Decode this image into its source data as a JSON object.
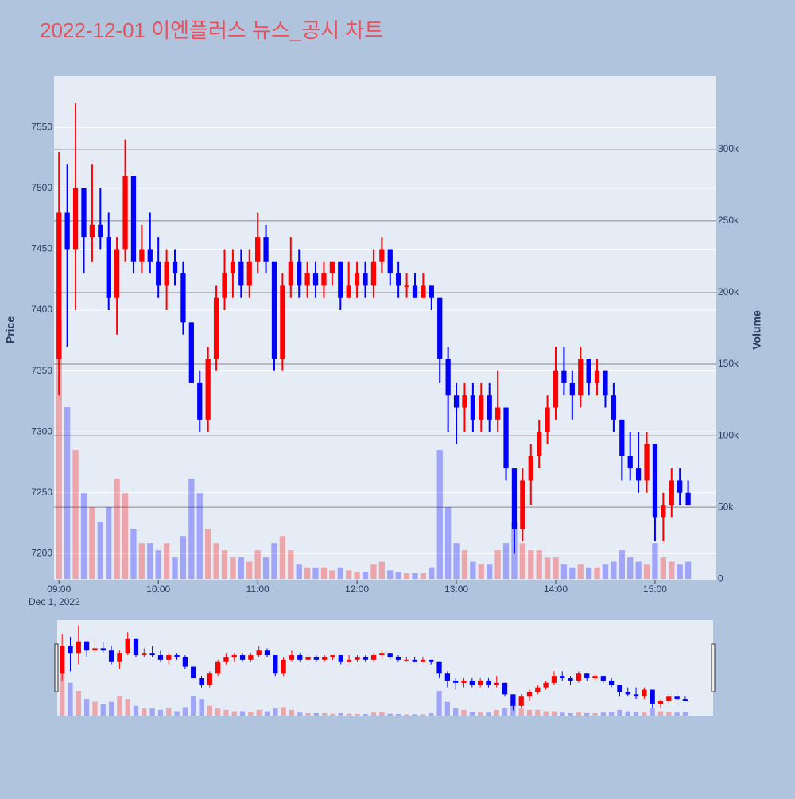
{
  "chart_data": {
    "type": "candlestick",
    "title": "2022-12-01 이엔플러스 뉴스_공시 차트",
    "y_label": "Price",
    "y2_label": "Volume",
    "x_sublabel": "Dec 1, 2022",
    "increasing_color": "#ff0000",
    "decreasing_color": "#0000ff",
    "grid": true,
    "range_slider": true,
    "xlim": [
      "2022-12-01 08:57",
      "2022-12-01 15:37"
    ],
    "xticks": [
      {
        "value": "2022-12-01 09:00",
        "label": "09:00"
      },
      {
        "value": "2022-12-01 10:00",
        "label": "10:00"
      },
      {
        "value": "2022-12-01 11:00",
        "label": "11:00"
      },
      {
        "value": "2022-12-01 12:00",
        "label": "12:00"
      },
      {
        "value": "2022-12-01 13:00",
        "label": "13:00"
      },
      {
        "value": "2022-12-01 14:00",
        "label": "14:00"
      },
      {
        "value": "2022-12-01 15:00",
        "label": "15:00"
      }
    ],
    "ylim": [
      7178,
      7592
    ],
    "yticks": [
      7200,
      7250,
      7300,
      7350,
      7400,
      7450,
      7500,
      7550
    ],
    "y2lim": [
      -1000,
      351000
    ],
    "y2ticks": [
      0,
      {
        "value": 50000,
        "label": "50k"
      },
      {
        "value": 100000,
        "label": "100k"
      },
      {
        "value": 150000,
        "label": "150k"
      },
      {
        "value": 200000,
        "label": "200k"
      },
      {
        "value": 250000,
        "label": "250k"
      },
      {
        "value": 300000,
        "label": "300k"
      }
    ],
    "x": [
      "2022-12-01 09:00",
      "2022-12-01 09:05",
      "2022-12-01 09:10",
      "2022-12-01 09:15",
      "2022-12-01 09:20",
      "2022-12-01 09:25",
      "2022-12-01 09:30",
      "2022-12-01 09:35",
      "2022-12-01 09:40",
      "2022-12-01 09:45",
      "2022-12-01 09:50",
      "2022-12-01 09:55",
      "2022-12-01 10:00",
      "2022-12-01 10:05",
      "2022-12-01 10:10",
      "2022-12-01 10:15",
      "2022-12-01 10:20",
      "2022-12-01 10:25",
      "2022-12-01 10:30",
      "2022-12-01 10:35",
      "2022-12-01 10:40",
      "2022-12-01 10:45",
      "2022-12-01 10:50",
      "2022-12-01 10:55",
      "2022-12-01 11:00",
      "2022-12-01 11:05",
      "2022-12-01 11:10",
      "2022-12-01 11:15",
      "2022-12-01 11:20",
      "2022-12-01 11:25",
      "2022-12-01 11:30",
      "2022-12-01 11:35",
      "2022-12-01 11:40",
      "2022-12-01 11:45",
      "2022-12-01 11:50",
      "2022-12-01 11:55",
      "2022-12-01 12:00",
      "2022-12-01 12:05",
      "2022-12-01 12:10",
      "2022-12-01 12:15",
      "2022-12-01 12:20",
      "2022-12-01 12:25",
      "2022-12-01 12:30",
      "2022-12-01 12:35",
      "2022-12-01 12:40",
      "2022-12-01 12:45",
      "2022-12-01 12:50",
      "2022-12-01 12:55",
      "2022-12-01 13:00",
      "2022-12-01 13:05",
      "2022-12-01 13:10",
      "2022-12-01 13:15",
      "2022-12-01 13:20",
      "2022-12-01 13:25",
      "2022-12-01 13:30",
      "2022-12-01 13:35",
      "2022-12-01 13:40",
      "2022-12-01 13:45",
      "2022-12-01 13:50",
      "2022-12-01 13:55",
      "2022-12-01 14:00",
      "2022-12-01 14:05",
      "2022-12-01 14:10",
      "2022-12-01 14:15",
      "2022-12-01 14:20",
      "2022-12-01 14:25",
      "2022-12-01 14:30",
      "2022-12-01 14:35",
      "2022-12-01 14:40",
      "2022-12-01 14:45",
      "2022-12-01 14:50",
      "2022-12-01 14:55",
      "2022-12-01 15:00",
      "2022-12-01 15:05",
      "2022-12-01 15:10",
      "2022-12-01 15:15",
      "2022-12-01 15:20"
    ],
    "open": [
      7360,
      7480,
      7450,
      7500,
      7460,
      7470,
      7460,
      7410,
      7450,
      7510,
      7440,
      7450,
      7440,
      7420,
      7440,
      7430,
      7390,
      7340,
      7310,
      7360,
      7410,
      7430,
      7440,
      7420,
      7440,
      7460,
      7440,
      7360,
      7420,
      7440,
      7420,
      7430,
      7420,
      7430,
      7440,
      7410,
      7420,
      7430,
      7420,
      7440,
      7450,
      7430,
      7420,
      7420,
      7410,
      7420,
      7410,
      7360,
      7330,
      7320,
      7330,
      7310,
      7330,
      7310,
      7320,
      7270,
      7220,
      7260,
      7280,
      7300,
      7320,
      7350,
      7340,
      7330,
      7360,
      7340,
      7350,
      7330,
      7310,
      7280,
      7270,
      7260,
      7290,
      7230,
      7240,
      7260,
      7250
    ],
    "high": [
      7530,
      7520,
      7570,
      7500,
      7520,
      7500,
      7480,
      7460,
      7540,
      7510,
      7470,
      7480,
      7460,
      7450,
      7450,
      7440,
      7390,
      7350,
      7370,
      7420,
      7450,
      7450,
      7450,
      7450,
      7480,
      7470,
      7440,
      7430,
      7460,
      7450,
      7440,
      7440,
      7440,
      7440,
      7440,
      7440,
      7440,
      7440,
      7450,
      7460,
      7450,
      7440,
      7430,
      7430,
      7430,
      7420,
      7410,
      7370,
      7340,
      7340,
      7340,
      7340,
      7340,
      7350,
      7320,
      7270,
      7270,
      7290,
      7310,
      7330,
      7370,
      7370,
      7350,
      7370,
      7360,
      7360,
      7350,
      7340,
      7310,
      7300,
      7300,
      7300,
      7290,
      7250,
      7270,
      7270,
      7260
    ],
    "low": [
      7330,
      7370,
      7400,
      7430,
      7440,
      7450,
      7400,
      7380,
      7440,
      7430,
      7430,
      7430,
      7410,
      7400,
      7420,
      7380,
      7340,
      7300,
      7300,
      7350,
      7400,
      7410,
      7410,
      7410,
      7430,
      7430,
      7350,
      7350,
      7410,
      7410,
      7410,
      7410,
      7410,
      7420,
      7400,
      7410,
      7410,
      7410,
      7410,
      7430,
      7420,
      7410,
      7410,
      7410,
      7410,
      7400,
      7340,
      7300,
      7290,
      7300,
      7300,
      7300,
      7300,
      7300,
      7260,
      7200,
      7210,
      7240,
      7270,
      7290,
      7310,
      7330,
      7310,
      7320,
      7330,
      7330,
      7320,
      7300,
      7260,
      7260,
      7250,
      7250,
      7210,
      7210,
      7230,
      7240,
      7240
    ],
    "close": [
      7480,
      7450,
      7500,
      7460,
      7470,
      7460,
      7410,
      7450,
      7510,
      7440,
      7450,
      7440,
      7420,
      7440,
      7430,
      7390,
      7340,
      7310,
      7360,
      7410,
      7430,
      7440,
      7420,
      7440,
      7460,
      7440,
      7360,
      7420,
      7440,
      7420,
      7430,
      7420,
      7430,
      7440,
      7410,
      7420,
      7430,
      7420,
      7440,
      7450,
      7430,
      7420,
      7420,
      7410,
      7420,
      7410,
      7360,
      7330,
      7320,
      7330,
      7310,
      7330,
      7310,
      7320,
      7270,
      7220,
      7260,
      7280,
      7300,
      7320,
      7350,
      7340,
      7330,
      7360,
      7340,
      7350,
      7330,
      7310,
      7280,
      7270,
      7260,
      7290,
      7230,
      7240,
      7260,
      7250,
      7240
    ],
    "volume": [
      180000,
      120000,
      90000,
      60000,
      50000,
      40000,
      50000,
      70000,
      60000,
      35000,
      25000,
      25000,
      20000,
      25000,
      15000,
      30000,
      70000,
      60000,
      35000,
      25000,
      20000,
      15000,
      15000,
      12000,
      20000,
      15000,
      25000,
      30000,
      20000,
      10000,
      8000,
      8000,
      8000,
      6000,
      8000,
      6000,
      5000,
      5000,
      10000,
      12000,
      6000,
      5000,
      4000,
      4000,
      4000,
      8000,
      90000,
      50000,
      25000,
      20000,
      12000,
      10000,
      10000,
      20000,
      25000,
      40000,
      25000,
      20000,
      20000,
      15000,
      15000,
      10000,
      8000,
      10000,
      8000,
      8000,
      10000,
      12000,
      20000,
      15000,
      12000,
      10000,
      25000,
      15000,
      12000,
      10000,
      12000
    ]
  }
}
